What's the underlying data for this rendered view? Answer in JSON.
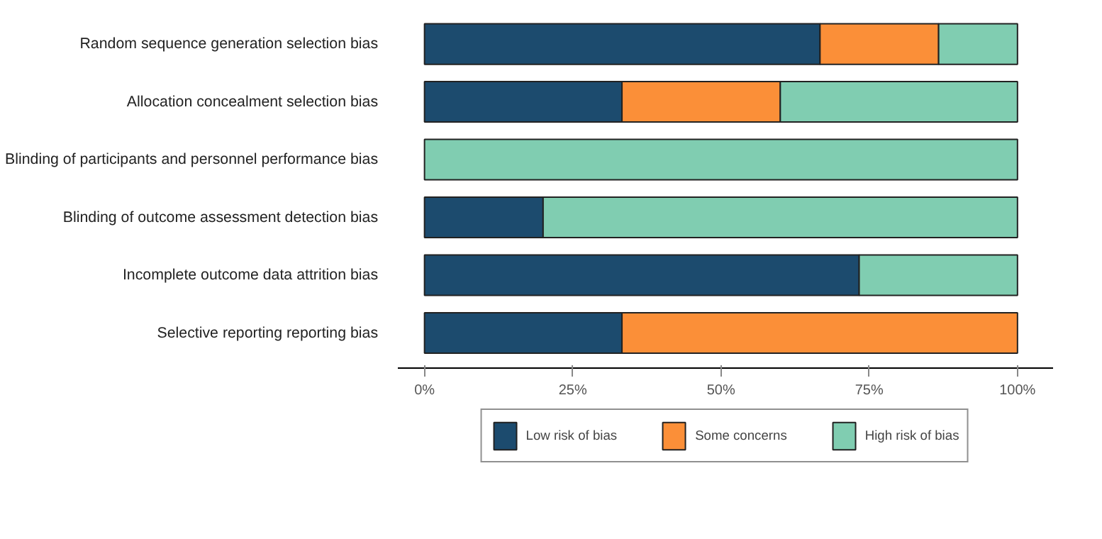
{
  "chart_data": {
    "type": "bar",
    "orientation": "horizontal",
    "stacked": true,
    "categories": [
      "Random sequence generation  selection bias",
      "Allocation concealment  selection bias",
      "Blinding of participants and personnel  performance bias",
      "Blinding of outcome assessment  detection bias",
      "Incomplete outcome data  attrition bias",
      "Selective reporting  reporting bias"
    ],
    "series": [
      {
        "name": "Low risk of bias",
        "color": "#1c4b6e",
        "values": [
          66.7,
          33.3,
          0,
          20,
          73.3,
          33.3
        ]
      },
      {
        "name": "Some concerns",
        "color": "#fb8f38",
        "values": [
          20,
          26.7,
          0,
          0,
          0,
          66.7
        ]
      },
      {
        "name": "High risk of bias",
        "color": "#80cdb1",
        "values": [
          13.3,
          40,
          100,
          80,
          26.7,
          0
        ]
      }
    ],
    "xlim": [
      -4.5,
      106
    ],
    "xticks": [
      {
        "value": 0,
        "label": "0%"
      },
      {
        "value": 25,
        "label": "25%"
      },
      {
        "value": 50,
        "label": "50%"
      },
      {
        "value": 75,
        "label": "75%"
      },
      {
        "value": 100,
        "label": "100%"
      }
    ],
    "grid": false,
    "legend": "bottom"
  }
}
